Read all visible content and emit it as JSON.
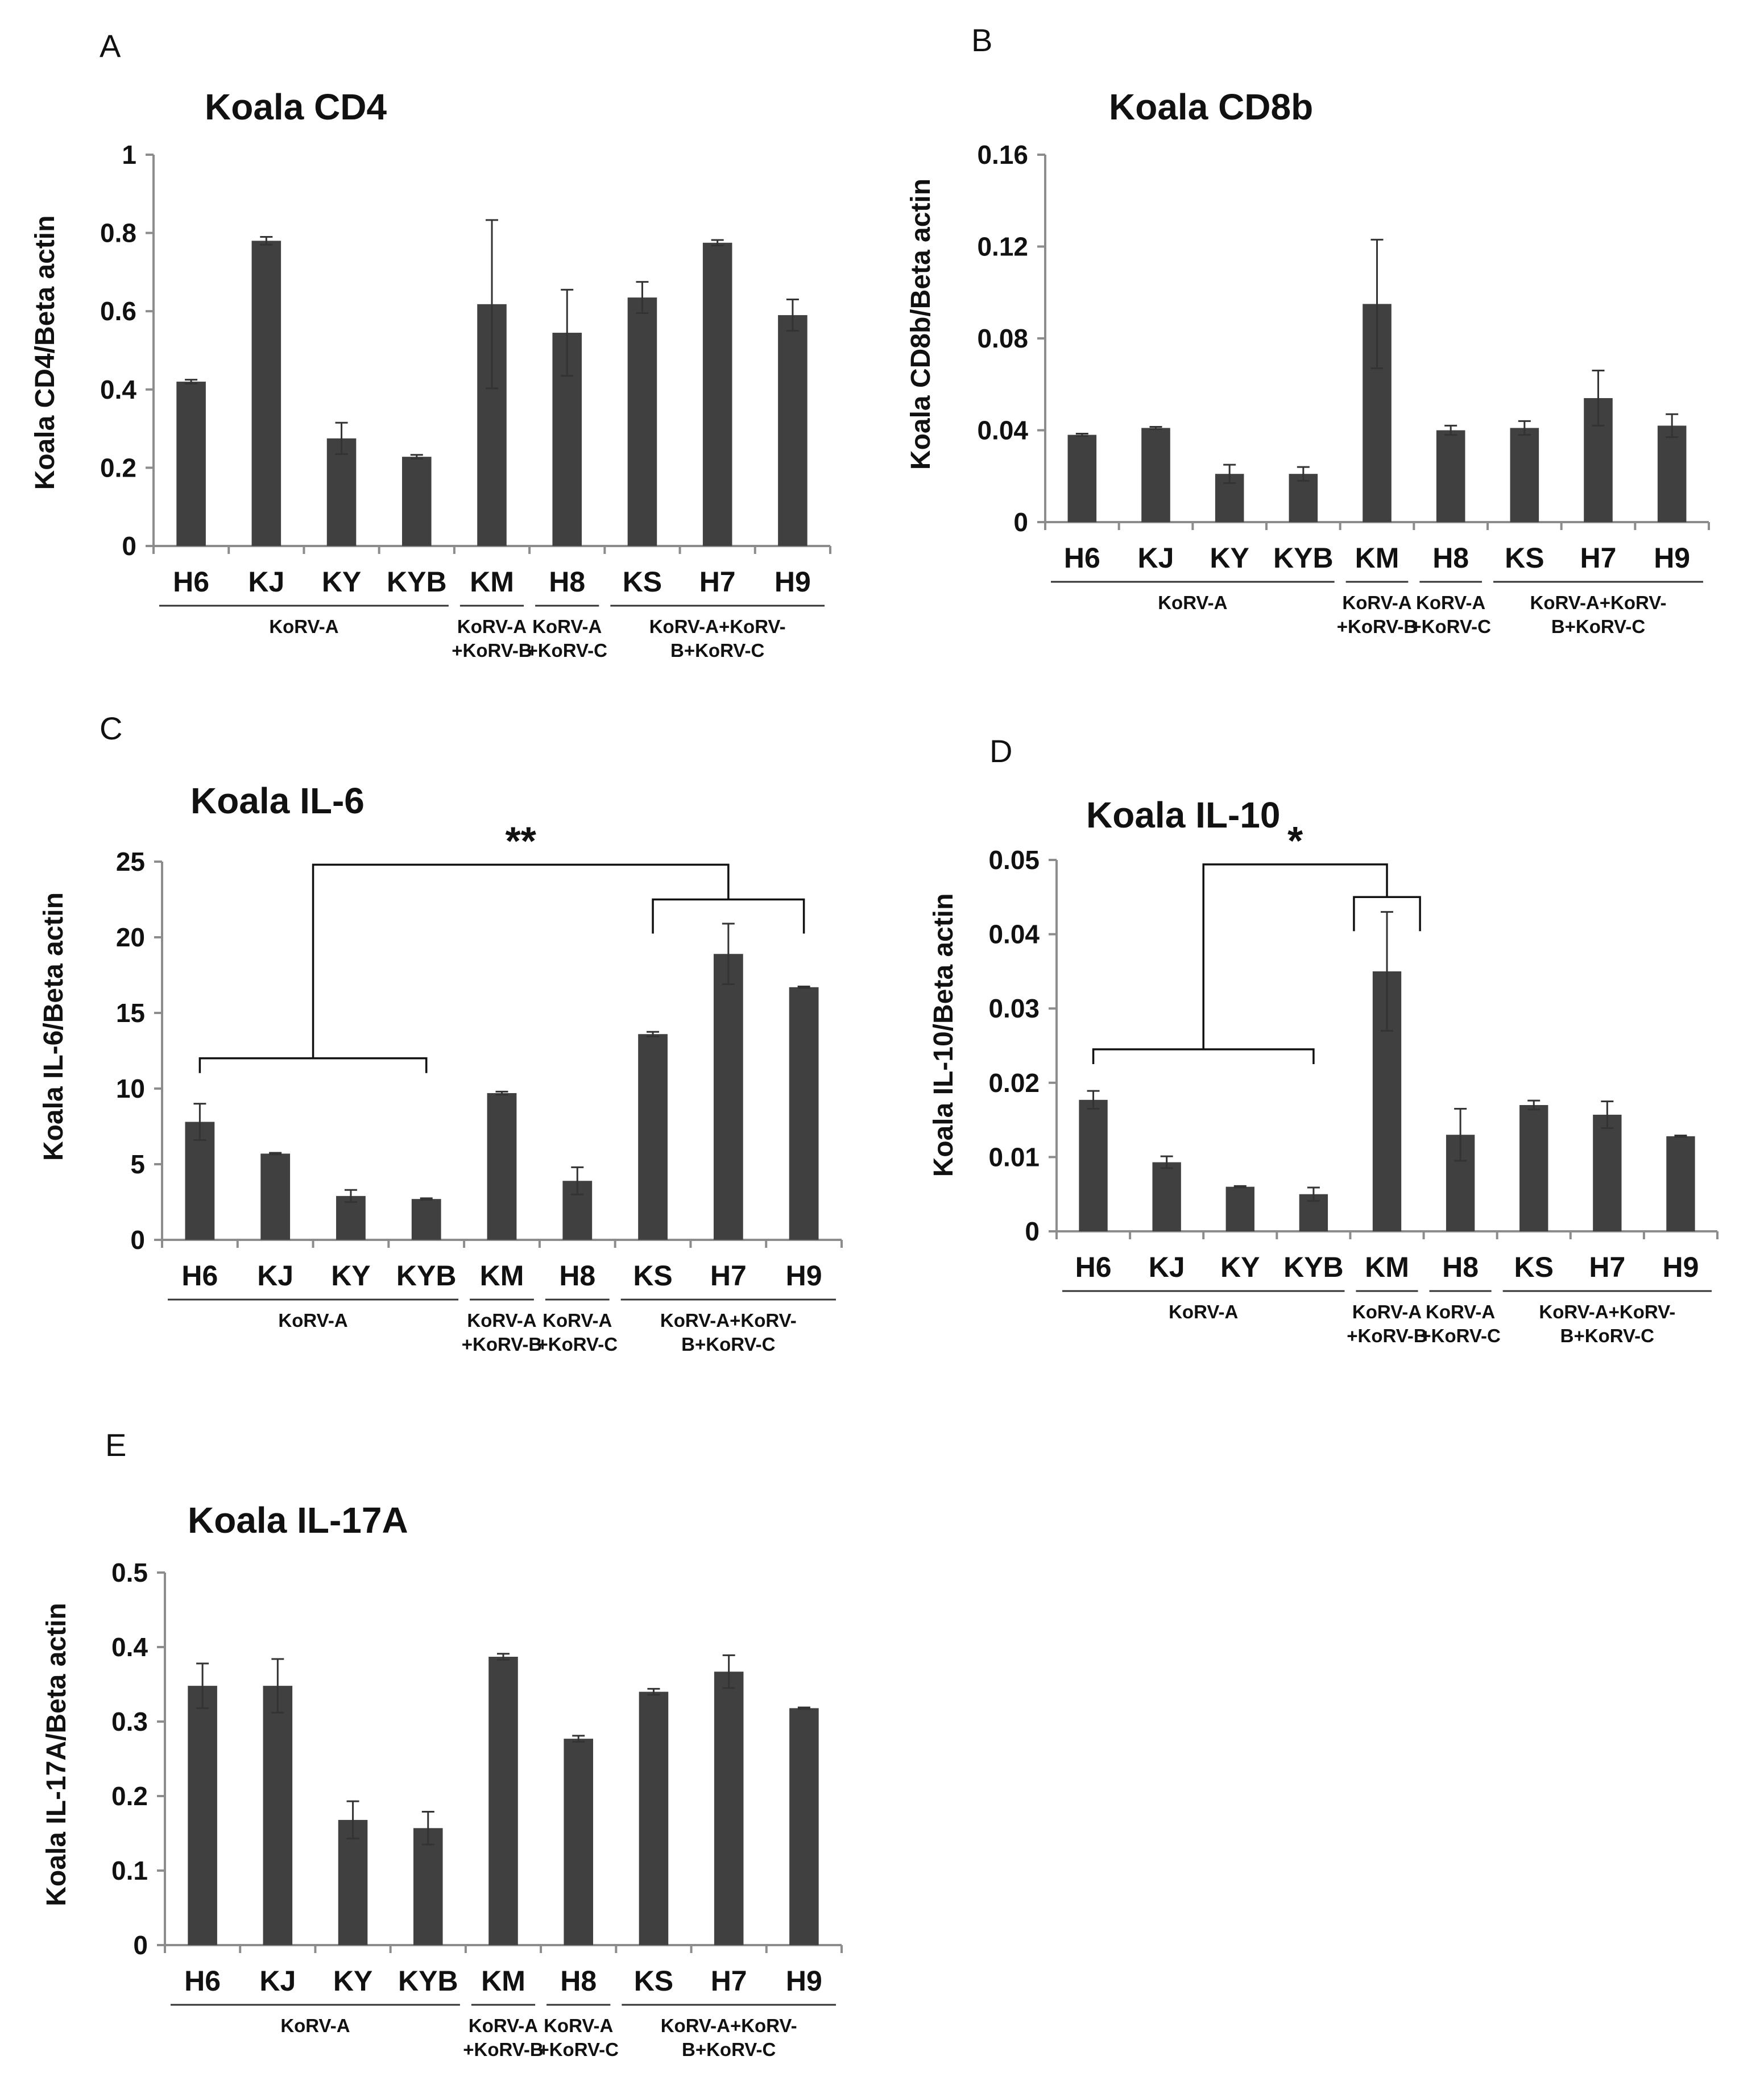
{
  "chart_data": [
    {
      "panel": "A",
      "type": "bar",
      "title": "Koala CD4",
      "ylabel": "Koala CD4/Beta actin",
      "ylim": [
        0,
        1
      ],
      "yticks": [
        "0",
        "0.2",
        "0.4",
        "0.6",
        "0.8",
        "1"
      ],
      "categories": [
        "H6",
        "KJ",
        "KY",
        "KYB",
        "KM",
        "H8",
        "KS",
        "H7",
        "H9"
      ],
      "values": [
        0.42,
        0.78,
        0.275,
        0.228,
        0.618,
        0.545,
        0.635,
        0.775,
        0.59
      ],
      "errors": [
        0.005,
        0.01,
        0.04,
        0.005,
        0.215,
        0.11,
        0.04,
        0.007,
        0.04
      ],
      "groups": [
        {
          "lines": [
            "KoRV-A"
          ],
          "from": 0,
          "to": 3
        },
        {
          "lines": [
            "KoRV-A",
            "+KoRV-B"
          ],
          "from": 4,
          "to": 4
        },
        {
          "lines": [
            "KoRV-A",
            "+KoRV-C"
          ],
          "from": 5,
          "to": 5
        },
        {
          "lines": [
            "KoRV-A+KoRV-",
            "B+KoRV-C"
          ],
          "from": 6,
          "to": 8
        }
      ],
      "significance": []
    },
    {
      "panel": "B",
      "type": "bar",
      "title": "Koala CD8b",
      "ylabel": "Koala CD8b/Beta actin",
      "ylim": [
        0,
        0.16
      ],
      "yticks": [
        "0",
        "0.04",
        "0.08",
        "0.12",
        "0.16"
      ],
      "categories": [
        "H6",
        "KJ",
        "KY",
        "KYB",
        "KM",
        "H8",
        "KS",
        "H7",
        "H9"
      ],
      "values": [
        0.038,
        0.041,
        0.021,
        0.021,
        0.095,
        0.04,
        0.041,
        0.054,
        0.042
      ],
      "errors": [
        0.0005,
        0.0005,
        0.004,
        0.003,
        0.028,
        0.002,
        0.003,
        0.012,
        0.005
      ],
      "groups": [
        {
          "lines": [
            "KoRV-A"
          ],
          "from": 0,
          "to": 3
        },
        {
          "lines": [
            "KoRV-A",
            "+KoRV-B"
          ],
          "from": 4,
          "to": 4
        },
        {
          "lines": [
            "KoRV-A",
            "+KoRV-C"
          ],
          "from": 5,
          "to": 5
        },
        {
          "lines": [
            "KoRV-A+KoRV-",
            "B+KoRV-C"
          ],
          "from": 6,
          "to": 8
        }
      ],
      "significance": []
    },
    {
      "panel": "C",
      "type": "bar",
      "title": "Koala IL-6",
      "ylabel": "Koala IL-6/Beta actin",
      "ylim": [
        0,
        25
      ],
      "yticks": [
        "0",
        "5",
        "10",
        "15",
        "20",
        "25"
      ],
      "categories": [
        "H6",
        "KJ",
        "KY",
        "KYB",
        "KM",
        "H8",
        "KS",
        "H7",
        "H9"
      ],
      "values": [
        7.8,
        5.7,
        2.9,
        2.7,
        9.7,
        3.9,
        13.6,
        18.9,
        16.7
      ],
      "errors": [
        1.2,
        0.05,
        0.4,
        0.05,
        0.1,
        0.9,
        0.15,
        2.0,
        0.05
      ],
      "groups": [
        {
          "lines": [
            "KoRV-A"
          ],
          "from": 0,
          "to": 3
        },
        {
          "lines": [
            "KoRV-A",
            "+KoRV-B"
          ],
          "from": 4,
          "to": 4
        },
        {
          "lines": [
            "KoRV-A",
            "+KoRV-C"
          ],
          "from": 5,
          "to": 5
        },
        {
          "lines": [
            "KoRV-A+KoRV-",
            "B+KoRV-C"
          ],
          "from": 6,
          "to": 8
        }
      ],
      "significance": [
        {
          "label": "**",
          "left_from": 0,
          "left_to": 3,
          "left_y": 12,
          "right_from": 6,
          "right_to": 8,
          "right_y": 22.5,
          "top_y": 24.8
        }
      ]
    },
    {
      "panel": "D",
      "type": "bar",
      "title": "Koala IL-10",
      "ylabel": "Koala IL-10/Beta actin",
      "ylim": [
        0,
        0.05
      ],
      "yticks": [
        "0",
        "0.01",
        "0.02",
        "0.03",
        "0.04",
        "0.05"
      ],
      "categories": [
        "H6",
        "KJ",
        "KY",
        "KYB",
        "KM",
        "H8",
        "KS",
        "H7",
        "H9"
      ],
      "values": [
        0.0177,
        0.0093,
        0.006,
        0.005,
        0.035,
        0.013,
        0.017,
        0.0157,
        0.0128
      ],
      "errors": [
        0.0012,
        0.0008,
        0.0001,
        0.0009,
        0.008,
        0.0035,
        0.0006,
        0.0018,
        0.0001
      ],
      "groups": [
        {
          "lines": [
            "KoRV-A"
          ],
          "from": 0,
          "to": 3
        },
        {
          "lines": [
            "KoRV-A",
            "+KoRV-B"
          ],
          "from": 4,
          "to": 4
        },
        {
          "lines": [
            "KoRV-A",
            "+KoRV-C"
          ],
          "from": 5,
          "to": 5
        },
        {
          "lines": [
            "KoRV-A+KoRV-",
            "B+KoRV-C"
          ],
          "from": 6,
          "to": 8
        }
      ],
      "significance": [
        {
          "label": "*",
          "left_from": 0,
          "left_to": 3,
          "left_y": 0.0245,
          "right_from": 4,
          "right_to": 4,
          "right_y": 0.045,
          "top_y": 0.0494
        }
      ]
    },
    {
      "panel": "E",
      "type": "bar",
      "title": "Koala IL-17A",
      "ylabel": "Koala IL-17A/Beta actin",
      "ylim": [
        0,
        0.5
      ],
      "yticks": [
        "0",
        "0.1",
        "0.2",
        "0.3",
        "0.4",
        "0.5"
      ],
      "categories": [
        "H6",
        "KJ",
        "KY",
        "KYB",
        "KM",
        "H8",
        "KS",
        "H7",
        "H9"
      ],
      "values": [
        0.348,
        0.348,
        0.168,
        0.157,
        0.387,
        0.277,
        0.34,
        0.367,
        0.318
      ],
      "errors": [
        0.03,
        0.036,
        0.025,
        0.022,
        0.004,
        0.004,
        0.004,
        0.022,
        0.001
      ],
      "groups": [
        {
          "lines": [
            "KoRV-A"
          ],
          "from": 0,
          "to": 3
        },
        {
          "lines": [
            "KoRV-A",
            "+KoRV-B"
          ],
          "from": 4,
          "to": 4
        },
        {
          "lines": [
            "KoRV-A",
            "+KoRV-C"
          ],
          "from": 5,
          "to": 5
        },
        {
          "lines": [
            "KoRV-A+KoRV-",
            "B+KoRV-C"
          ],
          "from": 6,
          "to": 8
        }
      ],
      "significance": []
    }
  ],
  "colors": {
    "bar": "#404040",
    "axis": "#8c8c8c",
    "ink": "#111111"
  }
}
